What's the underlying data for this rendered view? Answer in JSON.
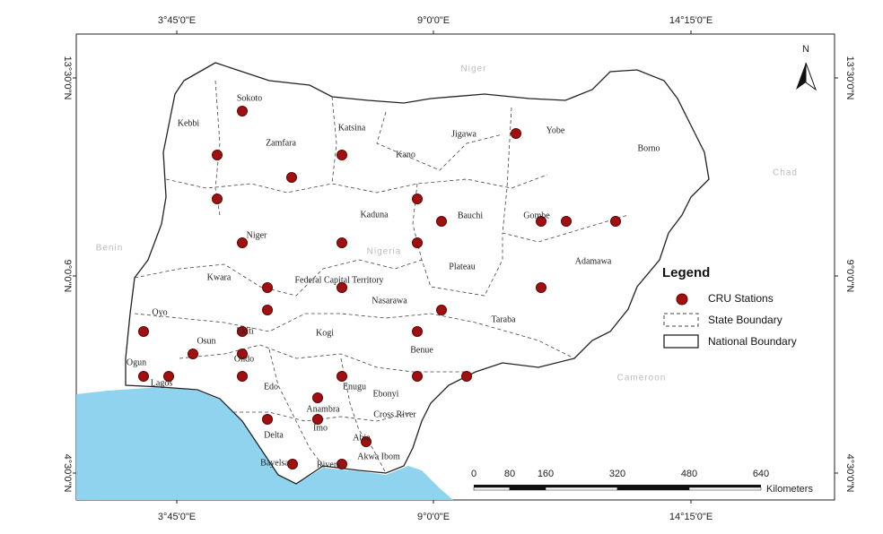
{
  "map": {
    "graticule": {
      "top": [
        "3°45'0\"E",
        "9°0'0\"E",
        "14°15'0\"E"
      ],
      "bottom": [
        "3°45'0\"E",
        "9°0'0\"E",
        "14°15'0\"E"
      ],
      "left": [
        "13°30'0\"N",
        "9°0'0\"N",
        "4°30'0\"N"
      ],
      "right": [
        "13°30'0\"N",
        "9°0'0\"N",
        "4°30'0\"N"
      ]
    },
    "countries": [
      "Niger",
      "Chad",
      "Benin",
      "Cameroon",
      "Nigeria"
    ],
    "states": [
      "Sokoto",
      "Kebbi",
      "Zamfara",
      "Katsina",
      "Kano",
      "Jigawa",
      "Yobe",
      "Borno",
      "Kaduna",
      "Bauchi",
      "Gombe",
      "Niger",
      "Plateau",
      "Adamawa",
      "Kwara",
      "Federal Capital Territory",
      "Nasarawa",
      "Oyo",
      "Taraba",
      "Osun",
      "Ekiti",
      "Kogi",
      "Benue",
      "Ondo",
      "Ogun",
      "Lagos",
      "Edo",
      "Enugu",
      "Ebonyi",
      "Anambra",
      "Cross River",
      "Imo",
      "Delta",
      "Abia",
      "Akwa Ibom",
      "Bayelsa",
      "Rivers"
    ],
    "north": "N",
    "legend": {
      "title": "Legend",
      "items": [
        "CRU Stations",
        "State Boundary",
        "National Boundary"
      ]
    },
    "scale_bar": {
      "ticks": [
        0,
        80,
        160,
        320,
        480,
        640
      ],
      "unit": "Kilometers"
    }
  }
}
